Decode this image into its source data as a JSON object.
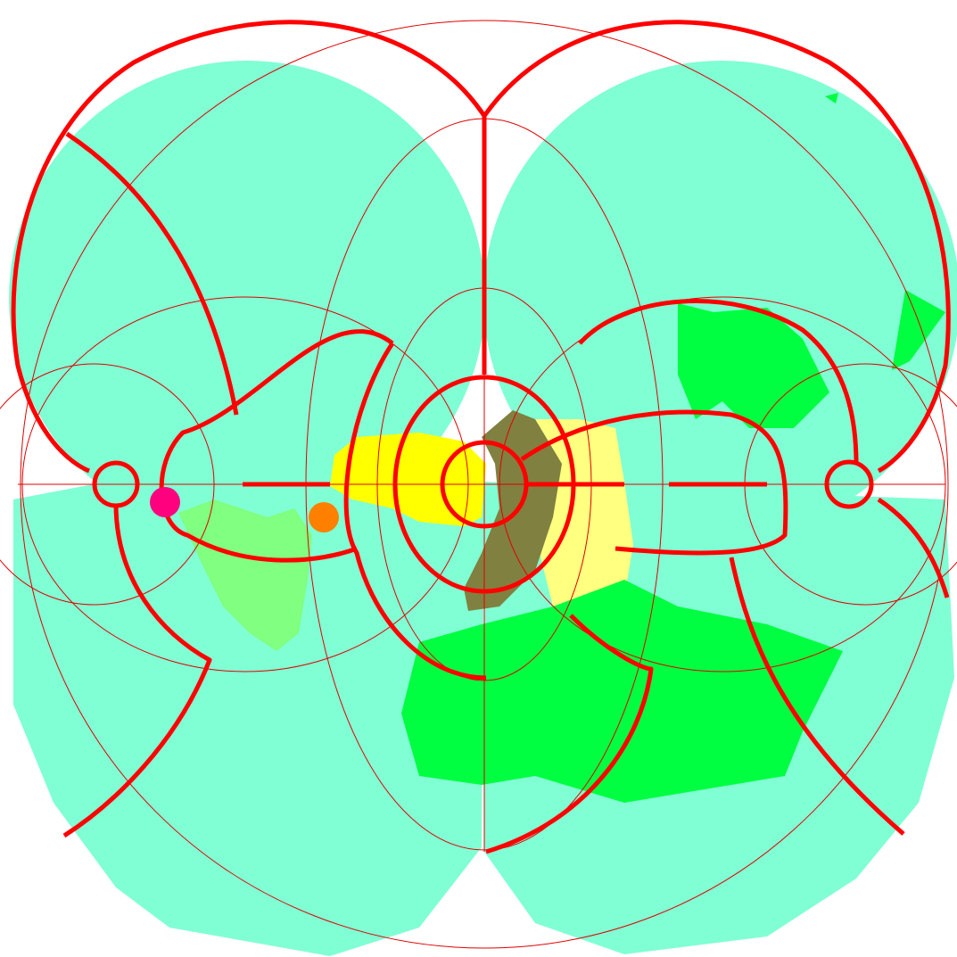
{
  "markers": [
    {
      "color": "#ff007f"
    },
    {
      "color": "#ff8000"
    }
  ]
}
